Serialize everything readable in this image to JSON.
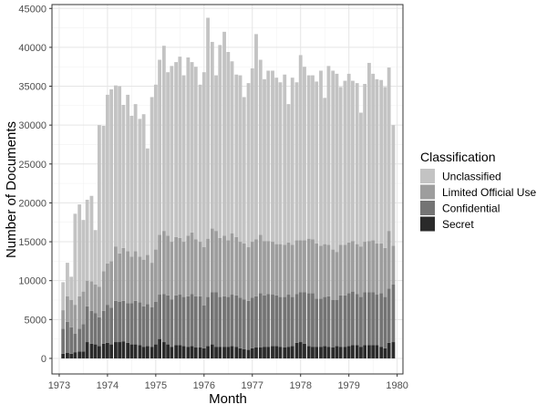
{
  "chart_data": {
    "type": "bar",
    "stacked": true,
    "xlabel": "Month",
    "ylabel": "Number of Documents",
    "xlim": [
      1972.85,
      1980.12
    ],
    "ylim": [
      -2000,
      45500
    ],
    "x_ticks": [
      1973,
      1974,
      1975,
      1976,
      1977,
      1978,
      1979,
      1980
    ],
    "y_ticks": [
      0,
      5000,
      10000,
      15000,
      20000,
      25000,
      30000,
      35000,
      40000,
      45000
    ],
    "y_tick_labels": [
      "0",
      "5000",
      "10000",
      "15000",
      "20000",
      "25000",
      "30000",
      "35000",
      "40000",
      "45000"
    ],
    "grid": true,
    "legend": {
      "title": "Classification",
      "position": "right",
      "entries": [
        "Unclassified",
        "Limited Official Use",
        "Confidential",
        "Secret"
      ]
    },
    "colors": {
      "Unclassified": "#c3c3c3",
      "Limited Official Use": "#9d9d9d",
      "Confidential": "#747474",
      "Secret": "#2a2a2a"
    },
    "x": [
      1973.08,
      1973.17,
      1973.25,
      1973.33,
      1973.42,
      1973.5,
      1973.58,
      1973.67,
      1973.75,
      1973.83,
      1973.92,
      1974.0,
      1974.08,
      1974.17,
      1974.25,
      1974.33,
      1974.42,
      1974.5,
      1974.58,
      1974.67,
      1974.75,
      1974.83,
      1974.92,
      1975.0,
      1975.08,
      1975.17,
      1975.25,
      1975.33,
      1975.42,
      1975.5,
      1975.58,
      1975.67,
      1975.75,
      1975.83,
      1975.92,
      1976.0,
      1976.08,
      1976.17,
      1976.25,
      1976.33,
      1976.42,
      1976.5,
      1976.58,
      1976.67,
      1976.75,
      1976.83,
      1976.92,
      1977.0,
      1977.08,
      1977.17,
      1977.25,
      1977.33,
      1977.42,
      1977.5,
      1977.58,
      1977.67,
      1977.75,
      1977.83,
      1977.92,
      1978.0,
      1978.08,
      1978.17,
      1978.25,
      1978.33,
      1978.42,
      1978.5,
      1978.58,
      1978.67,
      1978.75,
      1978.83,
      1978.92,
      1979.0,
      1979.08,
      1979.17,
      1979.25,
      1979.33,
      1979.42,
      1979.5,
      1979.58,
      1979.67,
      1979.75,
      1979.83,
      1979.92
    ],
    "series": [
      {
        "name": "Secret",
        "values": [
          600,
          700,
          600,
          800,
          900,
          900,
          2100,
          1900,
          1800,
          1600,
          1900,
          2000,
          1800,
          2100,
          2100,
          2200,
          2000,
          1800,
          1800,
          1700,
          1500,
          1600,
          1500,
          1800,
          2500,
          2100,
          1800,
          1500,
          1700,
          1700,
          1600,
          1500,
          1600,
          1400,
          1400,
          1300,
          1600,
          1800,
          1500,
          1500,
          1500,
          1500,
          1600,
          1500,
          1300,
          1200,
          1100,
          1300,
          1400,
          1400,
          1500,
          1500,
          1600,
          1600,
          1500,
          1400,
          1500,
          1600,
          2000,
          2100,
          1900,
          1600,
          1500,
          1500,
          1500,
          1600,
          1500,
          1400,
          1600,
          1500,
          1500,
          1600,
          1700,
          1700,
          1500,
          1700,
          1700,
          1700,
          1700,
          1500,
          1300,
          2000,
          2100
        ]
      },
      {
        "name": "Confidential",
        "values": [
          3200,
          4000,
          3400,
          2400,
          2900,
          3500,
          4600,
          4200,
          4000,
          3700,
          4200,
          4900,
          4700,
          5300,
          5200,
          5200,
          5100,
          5300,
          5600,
          5500,
          5200,
          5400,
          5100,
          5500,
          5700,
          6200,
          6300,
          6100,
          6400,
          6500,
          6300,
          6500,
          6700,
          6600,
          6600,
          5500,
          6300,
          6700,
          7000,
          6400,
          6500,
          6400,
          6600,
          6600,
          6500,
          6400,
          6300,
          6500,
          6600,
          7000,
          6600,
          6800,
          6600,
          6500,
          6400,
          6500,
          6700,
          6300,
          6300,
          6400,
          6600,
          6800,
          6900,
          6200,
          6200,
          6300,
          6500,
          6100,
          5900,
          6600,
          6600,
          6800,
          6900,
          6600,
          6400,
          6800,
          6800,
          6800,
          6500,
          6900,
          6600,
          7000,
          7400
        ]
      },
      {
        "name": "Limited Official Use",
        "values": [
          2400,
          3300,
          3500,
          3700,
          4200,
          4200,
          3300,
          3800,
          3700,
          3900,
          5100,
          5300,
          6000,
          7000,
          6200,
          6800,
          6700,
          6000,
          6400,
          5900,
          6000,
          6300,
          5700,
          6700,
          7700,
          8100,
          7700,
          7400,
          7500,
          7300,
          7100,
          7800,
          7900,
          7300,
          7000,
          7500,
          7500,
          8200,
          7900,
          7600,
          7800,
          7300,
          7900,
          7500,
          7200,
          7200,
          6900,
          7200,
          7300,
          7500,
          7000,
          6800,
          6800,
          6600,
          6800,
          6700,
          6700,
          6700,
          6900,
          6700,
          6700,
          7000,
          6900,
          7100,
          6800,
          6800,
          6600,
          6500,
          6200,
          6500,
          6500,
          6500,
          6500,
          6400,
          6500,
          6500,
          6600,
          6700,
          6600,
          6400,
          6300,
          7400,
          5000
        ]
      },
      {
        "name": "Unclassified",
        "values": [
          3600,
          4300,
          3000,
          11700,
          11800,
          9200,
          10400,
          11000,
          7000,
          20800,
          18700,
          21700,
          22100,
          20700,
          21500,
          18400,
          20100,
          18100,
          18900,
          17700,
          18700,
          13700,
          21300,
          21200,
          22500,
          23800,
          21000,
          22600,
          22500,
          23300,
          21400,
          22900,
          21900,
          22200,
          20200,
          22500,
          28400,
          24000,
          20000,
          24800,
          26200,
          24200,
          22100,
          20900,
          21400,
          18800,
          21100,
          22300,
          26400,
          22500,
          20800,
          21900,
          22000,
          21400,
          20800,
          21900,
          17800,
          21500,
          20300,
          23800,
          22300,
          21000,
          21100,
          20800,
          22500,
          18800,
          23000,
          23000,
          22900,
          20300,
          21100,
          21700,
          20600,
          20700,
          17200,
          20300,
          22900,
          21400,
          21100,
          21000,
          20700,
          21000,
          15500
        ]
      }
    ]
  }
}
